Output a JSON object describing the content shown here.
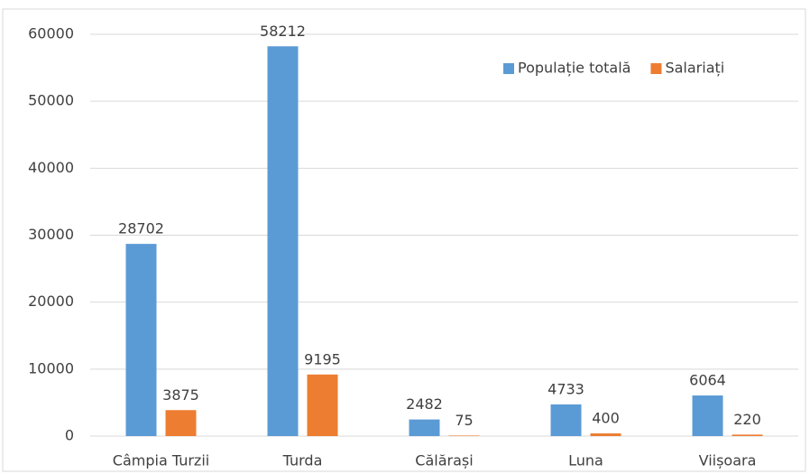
{
  "chart_data": {
    "type": "bar",
    "categories": [
      "Câmpia Turzii",
      "Turda",
      "Călărași",
      "Luna",
      "Viișoara"
    ],
    "series": [
      {
        "name": "Populație totală",
        "color": "#5b9bd5",
        "values": [
          28702,
          58212,
          2482,
          4733,
          6064
        ]
      },
      {
        "name": "Salariați",
        "color": "#ed7d31",
        "values": [
          3875,
          9195,
          75,
          400,
          220
        ]
      }
    ],
    "ylim": [
      0,
      60000
    ],
    "yticks": [
      0,
      10000,
      20000,
      30000,
      40000,
      50000,
      60000
    ],
    "grid": true,
    "legend": "top-right"
  }
}
